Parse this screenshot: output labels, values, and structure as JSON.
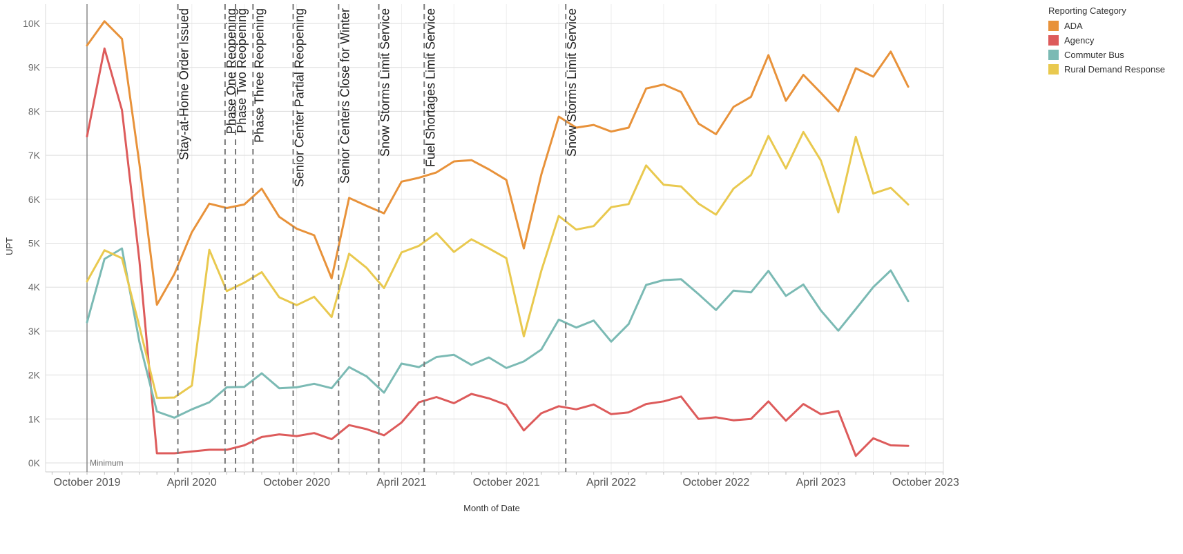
{
  "chart_data": {
    "type": "line",
    "title": "",
    "xlabel": "Month of Date",
    "ylabel": "UPT",
    "ylim": [
      0,
      10500
    ],
    "yticks": [
      0,
      1000,
      2000,
      3000,
      4000,
      5000,
      6000,
      7000,
      8000,
      9000,
      10000
    ],
    "ytick_labels": [
      "0K",
      "1K",
      "2K",
      "3K",
      "4K",
      "5K",
      "6K",
      "7K",
      "8K",
      "9K",
      "10K"
    ],
    "x_start": "2019-10",
    "x_end": "2023-10",
    "xtick_labels": [
      {
        "month": "2019-10",
        "label": "October 2019"
      },
      {
        "month": "2020-04",
        "label": "April 2020"
      },
      {
        "month": "2020-10",
        "label": "October 2020"
      },
      {
        "month": "2021-04",
        "label": "April 2021"
      },
      {
        "month": "2021-10",
        "label": "October 2021"
      },
      {
        "month": "2022-04",
        "label": "April 2022"
      },
      {
        "month": "2022-10",
        "label": "October 2022"
      },
      {
        "month": "2023-04",
        "label": "April 2023"
      },
      {
        "month": "2023-10",
        "label": "October 2023"
      }
    ],
    "grid": true,
    "legend_title": "Reporting Category",
    "legend_position": "top-right",
    "series": [
      {
        "name": "ADA",
        "color": "#E8923A",
        "values": [
          9500,
          10050,
          9650,
          6800,
          3600,
          4300,
          5250,
          5900,
          5800,
          5880,
          6240,
          5600,
          5330,
          5180,
          4200,
          6030,
          5850,
          5680,
          6400,
          6490,
          6610,
          6860,
          6890,
          6680,
          6440,
          4880,
          6560,
          7880,
          7630,
          7690,
          7540,
          7630,
          8520,
          8610,
          8440,
          7720,
          7480,
          8100,
          8330,
          9280,
          8240,
          8830,
          8420,
          8000,
          8980,
          8790,
          9360,
          8560
        ]
      },
      {
        "name": "Agency",
        "color": "#DD5B5B",
        "values": [
          7430,
          9430,
          8030,
          4600,
          220,
          220,
          260,
          300,
          300,
          400,
          590,
          650,
          610,
          680,
          540,
          860,
          770,
          630,
          920,
          1380,
          1500,
          1360,
          1570,
          1470,
          1320,
          740,
          1130,
          1290,
          1220,
          1330,
          1110,
          1150,
          1340,
          1400,
          1510,
          1000,
          1040,
          970,
          1000,
          1400,
          960,
          1340,
          1110,
          1180,
          160,
          560,
          400,
          390
        ]
      },
      {
        "name": "Commuter Bus",
        "color": "#7BBAB4",
        "values": [
          3200,
          4640,
          4880,
          2750,
          1170,
          1030,
          1220,
          1380,
          1720,
          1730,
          2040,
          1700,
          1720,
          1800,
          1700,
          2180,
          1970,
          1600,
          2260,
          2180,
          2410,
          2460,
          2230,
          2400,
          2160,
          2310,
          2580,
          3260,
          3080,
          3240,
          2760,
          3160,
          4050,
          4160,
          4180,
          3840,
          3480,
          3920,
          3880,
          4370,
          3800,
          4060,
          3470,
          3010,
          3500,
          4000,
          4380,
          3680
        ]
      },
      {
        "name": "Rural Demand Response",
        "color": "#E9C94F",
        "values": [
          4130,
          4840,
          4660,
          3100,
          1480,
          1490,
          1760,
          4850,
          3910,
          4100,
          4340,
          3770,
          3590,
          3780,
          3320,
          4760,
          4440,
          3980,
          4790,
          4940,
          5230,
          4800,
          5090,
          4880,
          4660,
          2880,
          4370,
          5620,
          5310,
          5390,
          5820,
          5890,
          6770,
          6330,
          6290,
          5900,
          5650,
          6240,
          6550,
          7440,
          6700,
          7530,
          6880,
          5700,
          7420,
          6130,
          6260,
          5880
        ]
      }
    ],
    "reference_line": {
      "month": "2019-10",
      "label": "Minimum"
    },
    "annotations": [
      {
        "month": "2020-03.2",
        "label": "Stay-at-Home Order Issued"
      },
      {
        "month": "2020-05.9",
        "label": "Phase One Reopening"
      },
      {
        "month": "2020-06.5",
        "label": "Phase Two Reopening"
      },
      {
        "month": "2020-07.5",
        "label": "Phase Three Reopening"
      },
      {
        "month": "2020-09.8",
        "label": "Senior Center Partial Reopening"
      },
      {
        "month": "2020-12.4",
        "label": "Senior Centers Close for Winter"
      },
      {
        "month": "2021-02.7",
        "label": "Snow Storms Limit Service"
      },
      {
        "month": "2021-05.3",
        "label": "Fuel Shortages Limit Service"
      },
      {
        "month": "2022-01.4",
        "label": "Snow Storms Limit Service"
      }
    ]
  }
}
